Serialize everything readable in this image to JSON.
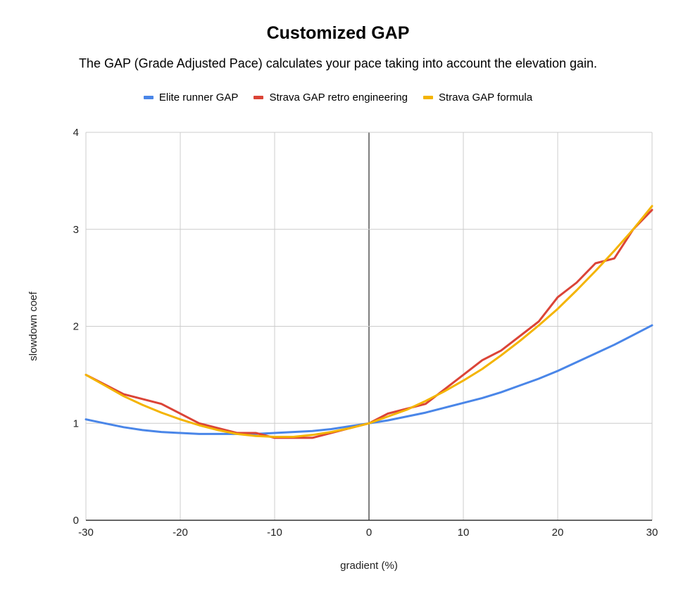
{
  "chart_data": {
    "type": "line",
    "title": "Customized GAP",
    "subtitle": "The GAP (Grade Adjusted Pace) calculates your pace taking into account the elevation gain.",
    "xlabel": "gradient (%)",
    "ylabel": "slowdown coef",
    "xlim": [
      -30,
      30
    ],
    "ylim": [
      0,
      4
    ],
    "xticks": [
      -30,
      -20,
      -10,
      0,
      10,
      20,
      30
    ],
    "yticks": [
      0,
      1,
      2,
      3,
      4
    ],
    "xtick_labels": [
      "-30",
      "-20",
      "-10",
      "0",
      "10",
      "20",
      "30"
    ],
    "ytick_labels": [
      "0",
      "1",
      "2",
      "3",
      "4"
    ],
    "grid": true,
    "legend_position": "top",
    "series": [
      {
        "name": "Elite runner GAP",
        "color": "#4a86e8",
        "x": [
          -30,
          -28,
          -26,
          -24,
          -22,
          -20,
          -18,
          -16,
          -14,
          -12,
          -10,
          -8,
          -6,
          -4,
          -2,
          0,
          2,
          4,
          6,
          8,
          10,
          12,
          14,
          16,
          18,
          20,
          22,
          24,
          26,
          28,
          30
        ],
        "y": [
          1.04,
          1.0,
          0.96,
          0.93,
          0.91,
          0.9,
          0.89,
          0.89,
          0.89,
          0.89,
          0.9,
          0.91,
          0.92,
          0.94,
          0.97,
          1.0,
          1.03,
          1.07,
          1.11,
          1.16,
          1.21,
          1.26,
          1.32,
          1.39,
          1.46,
          1.54,
          1.63,
          1.72,
          1.81,
          1.91,
          2.01
        ]
      },
      {
        "name": "Strava GAP retro engineering",
        "color": "#db4437",
        "x": [
          -30,
          -26,
          -22,
          -18,
          -14,
          -12,
          -10,
          -6,
          -2,
          0,
          2,
          6,
          10,
          12,
          14,
          18,
          20,
          22,
          24,
          26,
          28,
          30
        ],
        "y": [
          1.5,
          1.3,
          1.2,
          1.0,
          0.9,
          0.9,
          0.85,
          0.85,
          0.95,
          1.0,
          1.1,
          1.2,
          1.5,
          1.65,
          1.75,
          2.05,
          2.3,
          2.45,
          2.65,
          2.7,
          3.0,
          3.2
        ]
      },
      {
        "name": "Strava GAP formula",
        "color": "#f4b400",
        "x": [
          -30,
          -28,
          -26,
          -24,
          -22,
          -20,
          -18,
          -16,
          -14,
          -12,
          -10,
          -8,
          -6,
          -4,
          -2,
          0,
          2,
          4,
          6,
          8,
          10,
          12,
          14,
          16,
          18,
          20,
          22,
          24,
          26,
          28,
          30
        ],
        "y": [
          1.5,
          1.39,
          1.28,
          1.19,
          1.11,
          1.04,
          0.98,
          0.93,
          0.89,
          0.87,
          0.86,
          0.86,
          0.88,
          0.91,
          0.95,
          1.0,
          1.07,
          1.14,
          1.23,
          1.33,
          1.44,
          1.56,
          1.7,
          1.85,
          2.01,
          2.18,
          2.37,
          2.57,
          2.78,
          3.0,
          3.24
        ]
      }
    ]
  }
}
